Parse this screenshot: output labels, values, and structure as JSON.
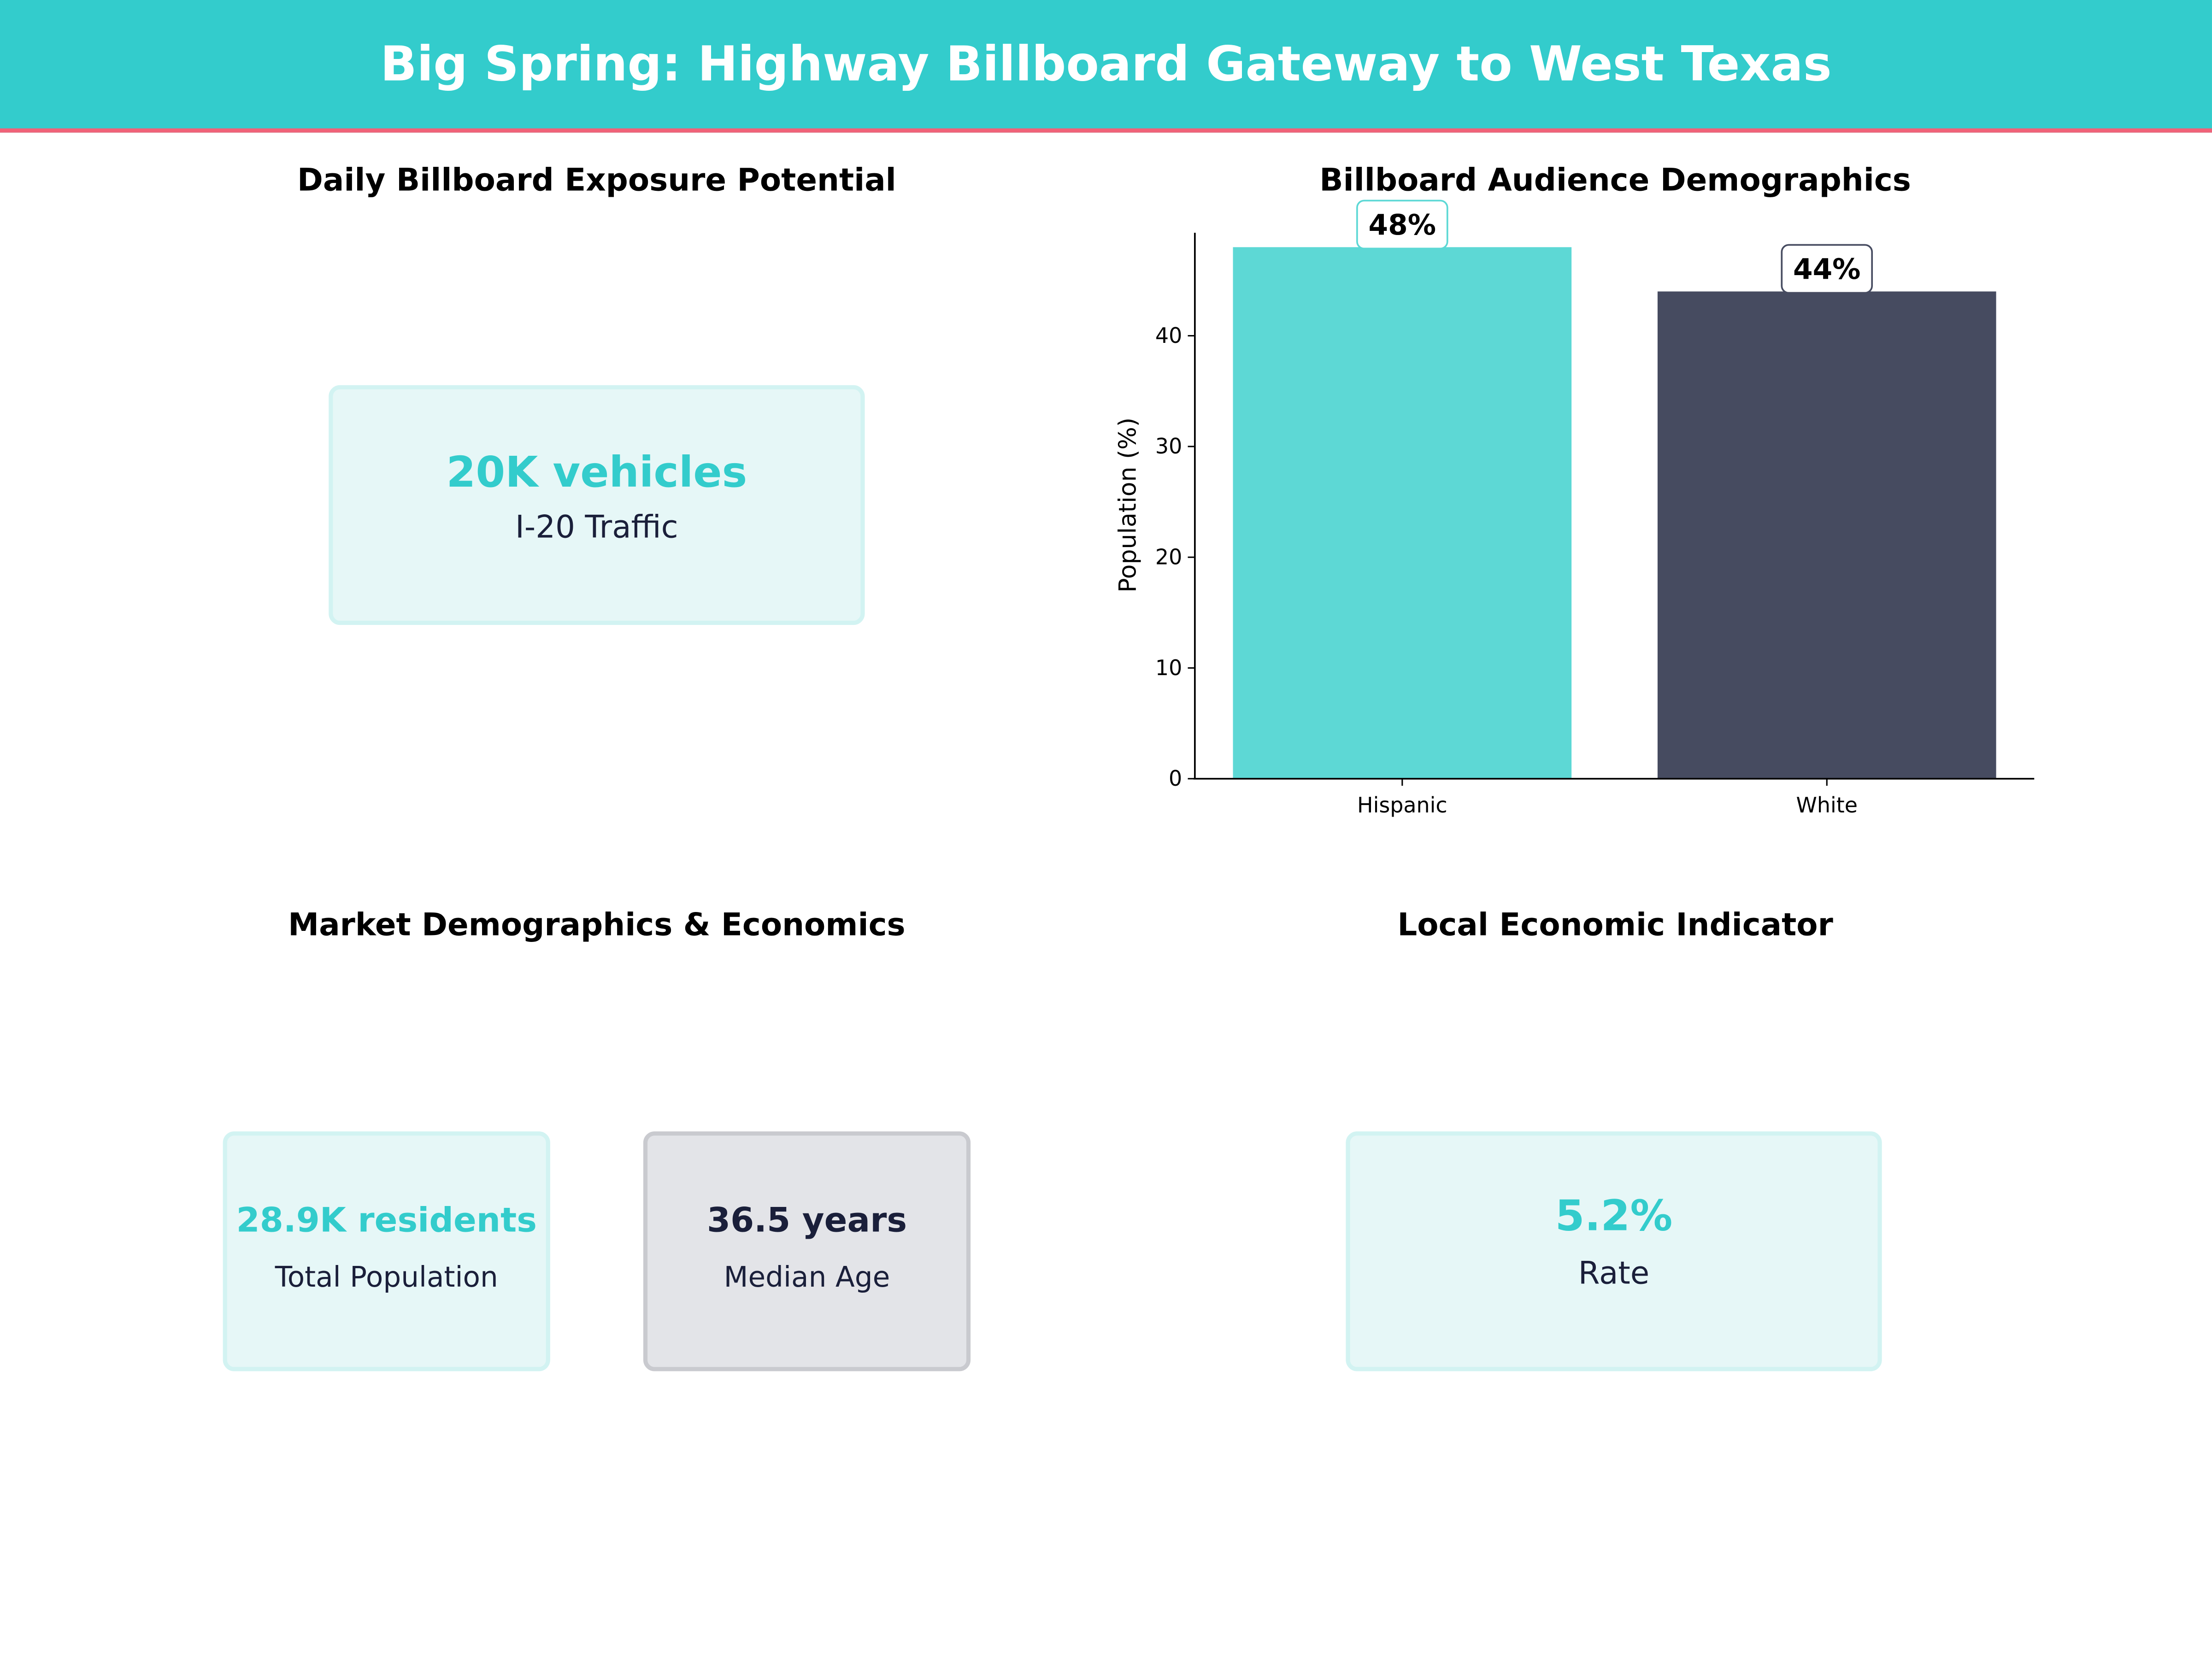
{
  "header": {
    "title": "Big Spring: Highway Billboard Gateway to West Texas"
  },
  "colors": {
    "accent": "#33CCCC",
    "stripe": "#F06278",
    "dark": "#464B60",
    "text_dark": "#1a1f3a"
  },
  "panels": {
    "exposure": {
      "title": "Daily Billboard Exposure Potential",
      "value": "20K vehicles",
      "label": "I-20 Traffic"
    },
    "market": {
      "title": "Market Demographics & Economics",
      "cards": [
        {
          "value": "28.9K residents",
          "label": "Total Population"
        },
        {
          "value": "36.5 years",
          "label": "Median Age"
        }
      ]
    },
    "economic": {
      "title": "Local Economic Indicator",
      "value": "5.2%",
      "label": "Rate"
    }
  },
  "chart_data": {
    "type": "bar",
    "title": "Billboard Audience Demographics",
    "categories": [
      "Hispanic",
      "White"
    ],
    "values": [
      48,
      44
    ],
    "data_labels": [
      "48%",
      "44%"
    ],
    "colors": [
      "#5DD8D5",
      "#464B60"
    ],
    "xlabel": "",
    "ylabel": "Population (%)",
    "ylim": [
      0,
      49.3
    ],
    "yticks": [
      0,
      10,
      20,
      30,
      40
    ],
    "grid": false
  }
}
